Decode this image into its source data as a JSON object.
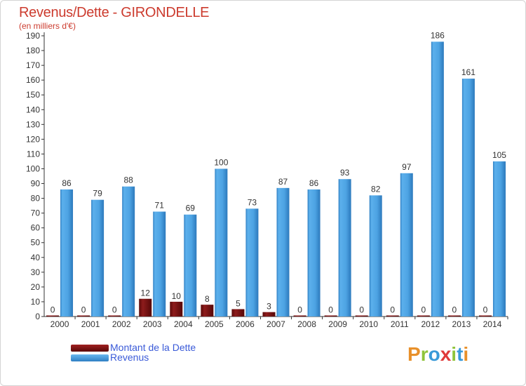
{
  "title": "Revenus/Dette - GIRONDELLE",
  "subtitle": "(en milliers d'€)",
  "legend": [
    {
      "label": "Montant de la Dette",
      "color": "#7a1010"
    },
    {
      "label": "Revenus",
      "color": "#4da3e3"
    }
  ],
  "logo": {
    "letters": [
      "P",
      "r",
      "o",
      "x",
      "i",
      "t",
      "i"
    ],
    "colors": [
      "#e8902a",
      "#8fc43a",
      "#3a9ad8",
      "#e03a3a",
      "#8fc43a",
      "#3a9ad8",
      "#e8902a"
    ]
  },
  "chart_data": {
    "type": "bar",
    "title": "Revenus/Dette - GIRONDELLE",
    "ylabel": "(en milliers d'€)",
    "categories": [
      "2000",
      "2001",
      "2002",
      "2003",
      "2004",
      "2005",
      "2006",
      "2007",
      "2008",
      "2009",
      "2010",
      "2011",
      "2012",
      "2013",
      "2014"
    ],
    "series": [
      {
        "name": "Montant de la Dette",
        "color": "#7a1010",
        "values": [
          0,
          0,
          0,
          12,
          10,
          8,
          5,
          3,
          0,
          0,
          0,
          0,
          0,
          0,
          0
        ]
      },
      {
        "name": "Revenus",
        "color": "#4da3e3",
        "values": [
          86,
          79,
          88,
          71,
          69,
          100,
          73,
          87,
          86,
          93,
          82,
          97,
          186,
          161,
          105
        ]
      }
    ],
    "yticks": [
      0,
      10,
      20,
      30,
      40,
      50,
      60,
      70,
      80,
      90,
      100,
      110,
      120,
      130,
      140,
      150,
      160,
      170,
      180,
      190
    ],
    "ylim": [
      0,
      190
    ],
    "grid": false,
    "legend_position": "bottom-left"
  }
}
